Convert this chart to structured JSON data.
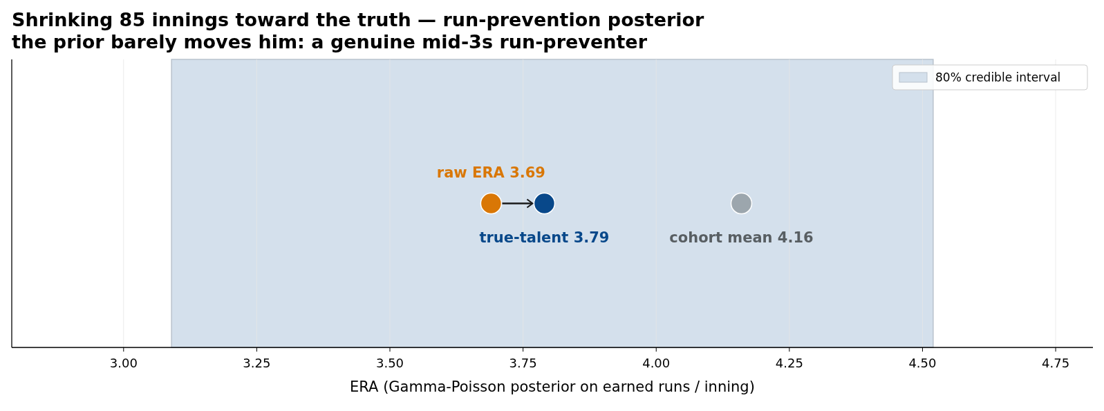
{
  "chart_data": {
    "type": "scatter",
    "orientation": "horizontal",
    "title": "Shrinking 85 innings toward the truth — run-prevention posterior",
    "subtitle": "the prior barely moves him: a genuine mid-3s run-preventer",
    "xlabel": "ERA (Gamma-Poisson posterior on earned runs / inning)",
    "categories": [
      null
    ],
    "series": [
      {
        "name": "raw ERA 3.69",
        "color": "#d97706",
        "values": [
          3.69
        ]
      },
      {
        "name": "true-talent 3.79",
        "color": "#08488a",
        "values": [
          3.79
        ]
      },
      {
        "name": "cohort mean 4.16",
        "color": "#9ca6ad",
        "values": [
          4.16
        ]
      }
    ],
    "xlim": [
      2.79,
      4.82
    ],
    "xticks": [
      {
        "value": 3,
        "label": "3.00"
      },
      {
        "value": 3.25,
        "label": "3.25"
      },
      {
        "value": 3.5,
        "label": "3.50"
      },
      {
        "value": 3.75,
        "label": "3.75"
      },
      {
        "value": 4,
        "label": "4.00"
      },
      {
        "value": 4.25,
        "label": "4.25"
      },
      {
        "value": 4.5,
        "label": "4.50"
      },
      {
        "value": 4.75,
        "label": "4.75"
      }
    ],
    "bands": [
      {
        "axis": "x",
        "from": 3.09,
        "to": 4.52,
        "label": "80% credible interval",
        "color": "#d4e0ec"
      }
    ],
    "grid": "x",
    "legend": "top right",
    "marker": "circle",
    "tick_labels": "x"
  }
}
